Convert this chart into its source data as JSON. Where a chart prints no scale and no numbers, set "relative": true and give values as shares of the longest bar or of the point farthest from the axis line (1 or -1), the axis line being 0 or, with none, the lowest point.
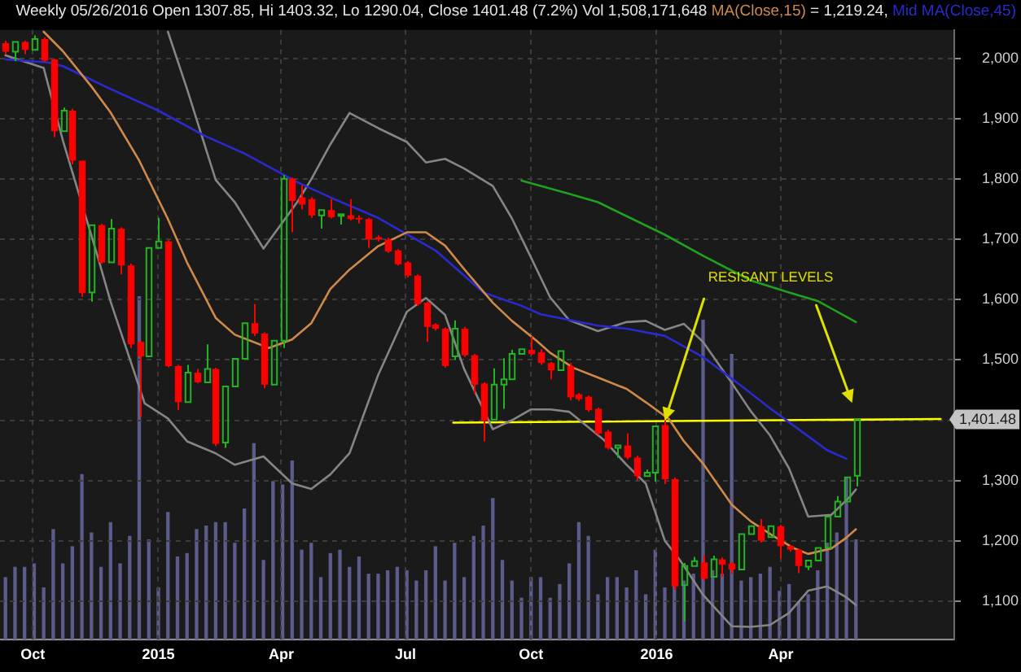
{
  "chart_data": [
    {
      "type": "candlestick",
      "title": "Weekly 05/26/2016 Open 1307.85, Hi 1403.32, Lo 1290.04, Close 1401.48 (7.2%) Vol 1,508,171,648",
      "x": [
        "2014-09-11",
        "2014-09-18",
        "2014-09-25",
        "2014-10-02",
        "2014-10-09",
        "2014-10-16",
        "2014-10-23",
        "2014-10-30",
        "2014-11-06",
        "2014-11-13",
        "2014-11-20",
        "2014-11-27",
        "2014-12-04",
        "2014-12-11",
        "2014-12-18",
        "2014-12-25",
        "2015-01-01",
        "2015-01-08",
        "2015-01-15",
        "2015-01-22",
        "2015-01-29",
        "2015-02-05",
        "2015-02-12",
        "2015-02-19",
        "2015-02-26",
        "2015-03-05",
        "2015-03-12",
        "2015-03-19",
        "2015-03-26",
        "2015-04-02",
        "2015-04-09",
        "2015-04-16",
        "2015-04-23",
        "2015-04-30",
        "2015-05-07",
        "2015-05-14",
        "2015-05-21",
        "2015-05-28",
        "2015-06-04",
        "2015-06-11",
        "2015-06-18",
        "2015-06-25",
        "2015-07-02",
        "2015-07-09",
        "2015-07-16",
        "2015-07-23",
        "2015-07-30",
        "2015-08-06",
        "2015-08-13",
        "2015-08-20",
        "2015-08-27",
        "2015-09-03",
        "2015-09-10",
        "2015-09-17",
        "2015-09-24",
        "2015-10-01",
        "2015-10-08",
        "2015-10-15",
        "2015-10-22",
        "2015-10-29",
        "2015-11-05",
        "2015-11-12",
        "2015-11-19",
        "2015-11-26",
        "2015-12-03",
        "2015-12-10",
        "2015-12-17",
        "2015-12-24",
        "2015-12-31",
        "2016-01-07",
        "2016-01-14",
        "2016-01-21",
        "2016-01-28",
        "2016-02-04",
        "2016-02-11",
        "2016-02-18",
        "2016-02-25",
        "2016-03-03",
        "2016-03-10",
        "2016-03-17",
        "2016-03-24",
        "2016-03-31",
        "2016-04-07",
        "2016-04-14",
        "2016-04-21",
        "2016-04-28",
        "2016-05-05",
        "2016-05-12",
        "2016-05-19",
        "2016-05-26"
      ],
      "ohlc": [
        [
          2026,
          2030,
          2008,
          2012
        ],
        [
          2012,
          2030,
          1996,
          2028
        ],
        [
          2028,
          2030,
          2008,
          2015
        ],
        [
          2015,
          2039,
          2013,
          2033
        ],
        [
          2033,
          2036,
          1995,
          1997
        ],
        [
          1999,
          2000,
          1870,
          1880
        ],
        [
          1880,
          1919,
          1877,
          1914
        ],
        [
          1914,
          1917,
          1825,
          1831
        ],
        [
          1831,
          1831,
          1605,
          1611
        ],
        [
          1612,
          1727,
          1597,
          1724
        ],
        [
          1724,
          1726,
          1660,
          1662
        ],
        [
          1662,
          1734,
          1658,
          1718
        ],
        [
          1718,
          1720,
          1642,
          1657
        ],
        [
          1657,
          1660,
          1520,
          1526
        ],
        [
          1530,
          1532,
          1405,
          1506
        ],
        [
          1506,
          1688,
          1503,
          1686
        ],
        [
          1686,
          1736,
          1682,
          1697
        ],
        [
          1697,
          1699,
          1488,
          1490
        ],
        [
          1490,
          1492,
          1417,
          1430
        ],
        [
          1430,
          1492,
          1427,
          1479
        ],
        [
          1479,
          1485,
          1461,
          1463
        ],
        [
          1463,
          1526,
          1460,
          1485
        ],
        [
          1485,
          1487,
          1357,
          1361
        ],
        [
          1363,
          1458,
          1354,
          1456
        ],
        [
          1456,
          1505,
          1452,
          1502
        ],
        [
          1502,
          1563,
          1499,
          1561
        ],
        [
          1561,
          1593,
          1540,
          1544
        ],
        [
          1544,
          1546,
          1453,
          1459
        ],
        [
          1459,
          1535,
          1456,
          1532
        ],
        [
          1532,
          1807,
          1520,
          1801
        ],
        [
          1801,
          1803,
          1712,
          1764
        ],
        [
          1770,
          1790,
          1750,
          1758
        ],
        [
          1767,
          1770,
          1736,
          1740
        ],
        [
          1740,
          1751,
          1718,
          1749
        ],
        [
          1749,
          1767,
          1735,
          1737
        ],
        [
          1740,
          1744,
          1725,
          1742
        ],
        [
          1740,
          1767,
          1732,
          1734
        ],
        [
          1736,
          1740,
          1727,
          1734
        ],
        [
          1734,
          1736,
          1686,
          1700
        ],
        [
          1704,
          1707,
          1697,
          1700
        ],
        [
          1700,
          1703,
          1678,
          1680
        ],
        [
          1682,
          1684,
          1657,
          1659
        ],
        [
          1662,
          1664,
          1637,
          1640
        ],
        [
          1640,
          1642,
          1590,
          1593
        ],
        [
          1595,
          1597,
          1530,
          1555
        ],
        [
          1559,
          1561,
          1549,
          1552
        ],
        [
          1552,
          1554,
          1487,
          1490
        ],
        [
          1506,
          1566,
          1500,
          1552
        ],
        [
          1552,
          1555,
          1505,
          1508
        ],
        [
          1508,
          1510,
          1444,
          1459
        ],
        [
          1461,
          1463,
          1365,
          1399
        ],
        [
          1401,
          1486,
          1398,
          1459
        ],
        [
          1459,
          1503,
          1419,
          1468
        ],
        [
          1468,
          1517,
          1465,
          1510
        ],
        [
          1510,
          1522,
          1507,
          1518
        ],
        [
          1517,
          1539,
          1508,
          1510
        ],
        [
          1513,
          1518,
          1492,
          1495
        ],
        [
          1495,
          1497,
          1468,
          1483
        ],
        [
          1483,
          1517,
          1480,
          1515
        ],
        [
          1490,
          1495,
          1433,
          1438
        ],
        [
          1443,
          1445,
          1432,
          1435
        ],
        [
          1439,
          1441,
          1414,
          1417
        ],
        [
          1419,
          1421,
          1375,
          1378
        ],
        [
          1381,
          1384,
          1351,
          1354
        ],
        [
          1354,
          1360,
          1338,
          1358
        ],
        [
          1358,
          1378,
          1335,
          1338
        ],
        [
          1338,
          1341,
          1300,
          1307
        ],
        [
          1307,
          1318,
          1305,
          1313
        ],
        [
          1313,
          1393,
          1298,
          1390
        ],
        [
          1392,
          1400,
          1294,
          1302
        ],
        [
          1302,
          1305,
          1118,
          1124
        ],
        [
          1126,
          1163,
          1066,
          1158
        ],
        [
          1158,
          1173,
          1154,
          1166
        ],
        [
          1164,
          1176,
          1134,
          1137
        ],
        [
          1140,
          1175,
          1137,
          1169
        ],
        [
          1169,
          1172,
          1140,
          1160
        ],
        [
          1162,
          1165,
          1145,
          1152
        ],
        [
          1152,
          1213,
          1150,
          1211
        ],
        [
          1211,
          1227,
          1208,
          1224
        ],
        [
          1224,
          1236,
          1197,
          1200
        ],
        [
          1206,
          1226,
          1203,
          1224
        ],
        [
          1224,
          1226,
          1170,
          1191
        ],
        [
          1191,
          1193,
          1182,
          1185
        ],
        [
          1185,
          1187,
          1146,
          1158
        ],
        [
          1157,
          1169,
          1151,
          1167
        ],
        [
          1167,
          1190,
          1165,
          1188
        ],
        [
          1188,
          1243,
          1185,
          1240
        ],
        [
          1240,
          1274,
          1237,
          1265
        ],
        [
          1265,
          1308,
          1262,
          1305
        ],
        [
          1307.85,
          1403.32,
          1290.04,
          1401.48
        ]
      ],
      "colors": [
        "#ff0000",
        "#22b422",
        "#ff0000",
        "#22b422",
        "#ff0000",
        "#ff0000",
        "#22b422",
        "#ff0000",
        "#ff0000",
        "#22b422",
        "#ff0000",
        "#22b422",
        "#ff0000",
        "#ff0000",
        "#ff0000",
        "#22b422",
        "#22b422",
        "#ff0000",
        "#ff0000",
        "#22b422",
        "#ff0000",
        "#22b422",
        "#ff0000",
        "#22b422",
        "#22b422",
        "#22b422",
        "#ff0000",
        "#ff0000",
        "#22b422",
        "#22b422",
        "#ff0000",
        "#ff0000",
        "#ff0000",
        "#22b422",
        "#ff0000",
        "#22b422",
        "#ff0000",
        "#ff0000",
        "#ff0000",
        "#ff0000",
        "#ff0000",
        "#ff0000",
        "#ff0000",
        "#ff0000",
        "#ff0000",
        "#ff0000",
        "#ff0000",
        "#22b422",
        "#ff0000",
        "#ff0000",
        "#ff0000",
        "#22b422",
        "#22b422",
        "#22b422",
        "#22b422",
        "#ff0000",
        "#ff0000",
        "#ff0000",
        "#22b422",
        "#ff0000",
        "#ff0000",
        "#ff0000",
        "#ff0000",
        "#ff0000",
        "#22b422",
        "#ff0000",
        "#ff0000",
        "#22b422",
        "#22b422",
        "#ff0000",
        "#ff0000",
        "#22b422",
        "#22b422",
        "#ff0000",
        "#22b422",
        "#ff0000",
        "#ff0000",
        "#22b422",
        "#22b422",
        "#ff0000",
        "#22b422",
        "#ff0000",
        "#ff0000",
        "#ff0000",
        "#22b422",
        "#22b422",
        "#22b422",
        "#22b422",
        "#22b422",
        "#22b422"
      ],
      "series": [
        {
          "name": "MA(Close,15)",
          "type": "line",
          "color": "#d08a48",
          "x": [
            "2014-10-09",
            "2014-10-23",
            "2014-11-13",
            "2014-11-27",
            "2014-12-18",
            "2015-01-08",
            "2015-01-22",
            "2015-02-12",
            "2015-02-26",
            "2015-03-23",
            "2015-04-09",
            "2015-04-23",
            "2015-05-07",
            "2015-05-21",
            "2015-06-11",
            "2015-07-02",
            "2015-07-16",
            "2015-07-30",
            "2015-08-13",
            "2015-09-03",
            "2015-09-17",
            "2015-10-05",
            "2015-10-15",
            "2015-11-01",
            "2015-11-19",
            "2015-12-10",
            "2015-12-24",
            "2016-01-10",
            "2016-01-21",
            "2016-02-04",
            "2016-02-25",
            "2016-03-10",
            "2016-03-27",
            "2016-04-10",
            "2016-04-21",
            "2016-05-08",
            "2016-05-19",
            "2016-05-26"
          ],
          "values": [
            2045,
            2013,
            1954,
            1911,
            1831,
            1734,
            1662,
            1570,
            1542,
            1520,
            1534,
            1561,
            1618,
            1650,
            1689,
            1712,
            1712,
            1690,
            1651,
            1595,
            1565,
            1532,
            1512,
            1487,
            1471,
            1452,
            1430,
            1402,
            1365,
            1328,
            1260,
            1232,
            1207,
            1188,
            1178,
            1187,
            1205,
            1219
          ]
        },
        {
          "name": "Mid MA(Close,45)",
          "type": "line",
          "color": "#2a2ad0",
          "x": [
            "2014-09-11",
            "2014-10-12",
            "2014-10-23",
            "2014-11-27",
            "2015-01-01",
            "2015-02-05",
            "2015-03-05",
            "2015-04-13",
            "2015-05-10",
            "2015-06-11",
            "2015-07-23",
            "2015-08-27",
            "2015-09-24",
            "2015-10-08",
            "2015-11-19",
            "2015-12-10",
            "2016-01-07",
            "2016-02-04",
            "2016-03-03",
            "2016-03-24",
            "2016-04-14",
            "2016-05-05",
            "2016-05-19"
          ],
          "values": [
            1999,
            1994,
            1988,
            1950,
            1914,
            1871,
            1843,
            1795,
            1767,
            1736,
            1682,
            1612,
            1590,
            1576,
            1557,
            1552,
            1540,
            1505,
            1457,
            1420,
            1385,
            1350,
            1336
          ]
        },
        {
          "type": "line",
          "color": "#858585",
          "x": [
            "2015-01-08",
            "2015-01-22",
            "2015-02-12",
            "2015-02-26",
            "2015-03-19",
            "2015-04-13",
            "2015-04-23",
            "2015-05-07",
            "2015-05-21",
            "2015-06-11",
            "2015-07-02",
            "2015-07-16",
            "2015-07-30",
            "2015-08-13",
            "2015-09-03",
            "2015-09-17",
            "2015-10-01",
            "2015-10-15",
            "2015-10-29",
            "2015-11-19",
            "2015-12-10",
            "2015-12-24",
            "2016-01-07",
            "2016-01-21",
            "2016-02-04",
            "2016-02-25",
            "2016-03-10",
            "2016-03-24",
            "2016-04-07",
            "2016-04-21",
            "2016-05-08",
            "2016-05-22",
            "2016-05-26"
          ],
          "values": [
            2045,
            1950,
            1799,
            1762,
            1685,
            1763,
            1800,
            1858,
            1910,
            1885,
            1862,
            1828,
            1834,
            1818,
            1789,
            1735,
            1670,
            1604,
            1566,
            1548,
            1563,
            1565,
            1550,
            1560,
            1530,
            1462,
            1415,
            1375,
            1320,
            1240,
            1243,
            1274,
            1285
          ]
        },
        {
          "type": "line",
          "color": "#858585",
          "x": [
            "2014-09-11",
            "2014-10-09",
            "2014-10-23",
            "2014-11-17",
            "2014-11-27",
            "2014-12-22",
            "2015-01-08",
            "2015-01-22",
            "2015-02-12",
            "2015-02-26",
            "2015-03-19",
            "2015-04-09",
            "2015-04-23",
            "2015-05-07",
            "2015-05-21",
            "2015-06-11",
            "2015-07-02",
            "2015-07-16",
            "2015-07-30",
            "2015-08-13",
            "2015-09-03",
            "2015-09-17",
            "2015-10-01",
            "2015-10-15",
            "2015-10-29",
            "2015-11-23",
            "2015-12-10",
            "2015-12-24",
            "2016-01-07",
            "2016-01-18",
            "2016-02-04",
            "2016-02-25",
            "2016-03-10",
            "2016-03-24",
            "2016-04-07",
            "2016-04-21",
            "2016-05-05",
            "2016-05-19",
            "2016-05-26"
          ],
          "values": [
            2006,
            1985,
            1865,
            1676,
            1597,
            1428,
            1403,
            1365,
            1345,
            1326,
            1340,
            1295,
            1286,
            1310,
            1345,
            1475,
            1580,
            1603,
            1575,
            1485,
            1385,
            1400,
            1418,
            1418,
            1414,
            1368,
            1326,
            1295,
            1200,
            1168,
            1110,
            1058,
            1057,
            1060,
            1080,
            1117,
            1124,
            1106,
            1093
          ]
        },
        {
          "type": "line",
          "color": "#1fa01f",
          "x": [
            "2015-09-24",
            "2015-10-29",
            "2015-11-19",
            "2016-01-07",
            "2016-02-04",
            "2016-03-10",
            "2016-04-07",
            "2016-04-28",
            "2016-05-26"
          ],
          "values": [
            1798,
            1776,
            1762,
            1708,
            1673,
            1632,
            1612,
            1598,
            1563
          ]
        },
        {
          "type": "line",
          "color": "#ffff00",
          "x": [
            "2015-08-05",
            "2016-07-27"
          ],
          "values": [
            1396,
            1402
          ]
        }
      ],
      "annotations": [
        "= 1,219.24,",
        {
          "text": "RESISANT LEVELS",
          "x": "2016-01-07",
          "y": 1399
        },
        "1,401.48"
      ],
      "xlim": [
        "2014-09-07",
        "2016-08-06"
      ],
      "xticks": [
        {
          "value": "2014-10-01",
          "label": "Oct"
        },
        {
          "value": "2015-01-01",
          "label": "2015"
        },
        {
          "value": "2015-04-01",
          "label": "Apr"
        },
        {
          "value": "2015-07-01",
          "label": "Jul"
        },
        {
          "value": "2015-10-01",
          "label": "Oct"
        },
        {
          "value": "2016-01-01",
          "label": "2016"
        },
        {
          "value": "2016-04-01",
          "label": "Apr"
        }
      ],
      "ylim": [
        1036,
        2048
      ],
      "yticks": [
        {
          "value": 1100,
          "label": "1,100"
        },
        {
          "value": 1200,
          "label": "1,200"
        },
        {
          "value": 1300,
          "label": "1,300"
        },
        {
          "value": 1400,
          "label": null
        },
        {
          "value": 1500,
          "label": "1,500"
        },
        {
          "value": 1600,
          "label": "1,600"
        },
        {
          "value": 1700,
          "label": "1,700"
        },
        {
          "value": 1800,
          "label": "1,800"
        },
        {
          "value": 1900,
          "label": "1,900"
        },
        {
          "value": 2000,
          "label": "2,000"
        }
      ],
      "grid": true,
      "legend": "top right"
    },
    {
      "type": "bar",
      "relative": true,
      "color": "#5b5b8c",
      "x": [
        "2014-09-11",
        "2014-09-18",
        "2014-09-25",
        "2014-10-02",
        "2014-10-09",
        "2014-10-16",
        "2014-10-23",
        "2014-10-30",
        "2014-11-06",
        "2014-11-13",
        "2014-11-20",
        "2014-11-27",
        "2014-12-04",
        "2014-12-11",
        "2014-12-18",
        "2014-12-25",
        "2015-01-01",
        "2015-01-08",
        "2015-01-15",
        "2015-01-22",
        "2015-01-29",
        "2015-02-05",
        "2015-02-12",
        "2015-02-19",
        "2015-02-26",
        "2015-03-05",
        "2015-03-12",
        "2015-03-19",
        "2015-03-26",
        "2015-04-02",
        "2015-04-09",
        "2015-04-16",
        "2015-04-23",
        "2015-04-30",
        "2015-05-07",
        "2015-05-14",
        "2015-05-21",
        "2015-05-28",
        "2015-06-04",
        "2015-06-11",
        "2015-06-18",
        "2015-06-25",
        "2015-07-02",
        "2015-07-09",
        "2015-07-16",
        "2015-07-23",
        "2015-07-30",
        "2015-08-06",
        "2015-08-13",
        "2015-08-20",
        "2015-08-27",
        "2015-09-03",
        "2015-09-10",
        "2015-09-17",
        "2015-09-24",
        "2015-10-01",
        "2015-10-08",
        "2015-10-15",
        "2015-10-22",
        "2015-10-29",
        "2015-11-05",
        "2015-11-12",
        "2015-11-19",
        "2015-11-26",
        "2015-12-03",
        "2015-12-10",
        "2015-12-17",
        "2015-12-24",
        "2015-12-31",
        "2016-01-07",
        "2016-01-14",
        "2016-01-21",
        "2016-01-28",
        "2016-02-04",
        "2016-02-11",
        "2016-02-18",
        "2016-02-25",
        "2016-03-03",
        "2016-03-10",
        "2016-03-17",
        "2016-03-24",
        "2016-03-31",
        "2016-04-07",
        "2016-04-14",
        "2016-04-21",
        "2016-04-28",
        "2016-05-05",
        "2016-05-12",
        "2016-05-19",
        "2016-05-26"
      ],
      "values": [
        0.18,
        0.21,
        0.21,
        0.22,
        0.15,
        0.32,
        0.22,
        0.27,
        0.48,
        0.31,
        0.21,
        0.34,
        0.22,
        0.3,
        1,
        0.29,
        0.15,
        0.37,
        0.24,
        0.25,
        0.32,
        0.33,
        0.34,
        0.34,
        0.28,
        0.38,
        0.57,
        0.23,
        0.46,
        0.45,
        0.52,
        0.26,
        0.28,
        0.18,
        0.25,
        0.26,
        0.21,
        0.24,
        0.19,
        0.19,
        0.2,
        0.21,
        0.2,
        0.17,
        0.2,
        0.27,
        0.17,
        0.28,
        0.18,
        0.3,
        0.33,
        0.41,
        0.23,
        0.17,
        0.12,
        0.18,
        0.18,
        0.12,
        0.16,
        0.22,
        0.34,
        0.3,
        0.13,
        0.18,
        0.18,
        0.15,
        0.2,
        0.13,
        0.26,
        0.15,
        0.16,
        0.17,
        0.19,
        0.93,
        0.2,
        0.19,
        0.83,
        0.17,
        0.18,
        0.19,
        0.21,
        0.14,
        0.16,
        0.11,
        0.13,
        0.2,
        0.28,
        0.31,
        0.47,
        0.29
      ],
      "xlim": [
        "2014-09-07",
        "2016-08-06"
      ],
      "tick_labels": false
    }
  ]
}
